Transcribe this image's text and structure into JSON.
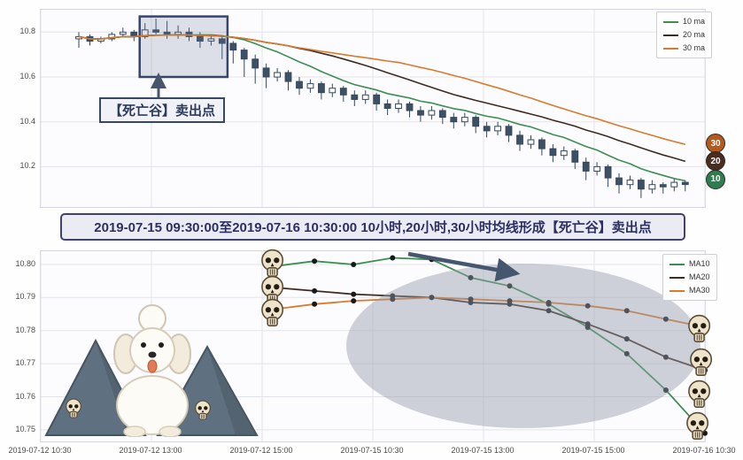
{
  "banner": {
    "text": "2019-07-15 09:30:00至2019-07-16 10:30:00 10小时,20小时,30小时均线形成【死亡谷】卖出点"
  },
  "top_chart": {
    "legend": [
      "10 ma",
      "20 ma",
      "30 ma"
    ],
    "ytick_labels": [
      "10.8",
      "10.6",
      "10.4",
      "10.2"
    ]
  },
  "bottom_chart": {
    "legend": [
      "MA10",
      "MA20",
      "MA30"
    ],
    "ytick_labels": [
      "10.80",
      "10.79",
      "10.78",
      "10.77",
      "10.76",
      "10.75"
    ]
  },
  "x_tick_labels": [
    "2019-07-12 10:30",
    "2019-07-12 13:00",
    "2019-07-12 15:00",
    "2019-07-15 10:30",
    "2019-07-15 13:00",
    "2019-07-15 15:00",
    "2019-07-16 10:30"
  ],
  "colors": {
    "ma10": "#3c8e53",
    "ma20": "#3f2a20",
    "ma30": "#d97b2e",
    "candle": "#35485e",
    "candle_down_fill": "#3d5064",
    "grid": "#e3e3eb",
    "arrow": "#46566e",
    "ellipse": "rgba(148,156,170,0.45)",
    "highlight_fill": "rgba(110,125,155,0.22)",
    "highlight_stroke": "#36456b",
    "badge_30": "#b45a1d",
    "badge_20": "#4a2d20",
    "badge_10": "#2f7d4f"
  },
  "chart_data": [
    {
      "type": "candlestick",
      "title": "",
      "xlabel": "",
      "ylabel": "",
      "grid": true,
      "legend_position": "top-right",
      "ylim": [
        10.02,
        10.9
      ],
      "yticks": [
        10.8,
        10.6,
        10.4,
        10.2
      ],
      "x_tick_labels": [
        "2019-07-12 10:30",
        "2019-07-12 13:00",
        "2019-07-12 15:00",
        "2019-07-15 10:30",
        "2019-07-15 13:00",
        "2019-07-15 15:00",
        "2019-07-16 10:30"
      ],
      "ma_series": [
        {
          "name": "10 ma",
          "window": 10
        },
        {
          "name": "20 ma",
          "window": 20
        },
        {
          "name": "30 ma",
          "window": 30
        }
      ],
      "candles_ohlc": [
        [
          10.77,
          10.8,
          10.73,
          10.78
        ],
        [
          10.78,
          10.79,
          10.74,
          10.76
        ],
        [
          10.76,
          10.78,
          10.75,
          10.77
        ],
        [
          10.77,
          10.8,
          10.76,
          10.79
        ],
        [
          10.79,
          10.82,
          10.78,
          10.8
        ],
        [
          10.8,
          10.81,
          10.76,
          10.78
        ],
        [
          10.78,
          10.84,
          10.77,
          10.81
        ],
        [
          10.81,
          10.86,
          10.79,
          10.8
        ],
        [
          10.8,
          10.85,
          10.77,
          10.79
        ],
        [
          10.79,
          10.83,
          10.77,
          10.8
        ],
        [
          10.8,
          10.82,
          10.76,
          10.78
        ],
        [
          10.78,
          10.8,
          10.73,
          10.76
        ],
        [
          10.76,
          10.79,
          10.74,
          10.77
        ],
        [
          10.77,
          10.78,
          10.68,
          10.75
        ],
        [
          10.75,
          10.76,
          10.66,
          10.72
        ],
        [
          10.72,
          10.73,
          10.6,
          10.68
        ],
        [
          10.68,
          10.7,
          10.57,
          10.64
        ],
        [
          10.64,
          10.66,
          10.55,
          10.6
        ],
        [
          10.6,
          10.64,
          10.58,
          10.62
        ],
        [
          10.62,
          10.63,
          10.54,
          10.58
        ],
        [
          10.58,
          10.6,
          10.52,
          10.55
        ],
        [
          10.55,
          10.59,
          10.53,
          10.57
        ],
        [
          10.57,
          10.58,
          10.5,
          10.53
        ],
        [
          10.53,
          10.57,
          10.51,
          10.55
        ],
        [
          10.55,
          10.56,
          10.49,
          10.52
        ],
        [
          10.52,
          10.54,
          10.47,
          10.5
        ],
        [
          10.5,
          10.54,
          10.48,
          10.52
        ],
        [
          10.52,
          10.53,
          10.45,
          10.48
        ],
        [
          10.48,
          10.5,
          10.43,
          10.46
        ],
        [
          10.46,
          10.5,
          10.44,
          10.48
        ],
        [
          10.48,
          10.49,
          10.42,
          10.45
        ],
        [
          10.45,
          10.47,
          10.4,
          10.43
        ],
        [
          10.43,
          10.47,
          10.41,
          10.45
        ],
        [
          10.45,
          10.46,
          10.39,
          10.42
        ],
        [
          10.42,
          10.44,
          10.37,
          10.4
        ],
        [
          10.4,
          10.44,
          10.38,
          10.42
        ],
        [
          10.42,
          10.43,
          10.35,
          10.38
        ],
        [
          10.38,
          10.4,
          10.33,
          10.36
        ],
        [
          10.36,
          10.4,
          10.34,
          10.38
        ],
        [
          10.38,
          10.39,
          10.31,
          10.34
        ],
        [
          10.34,
          10.36,
          10.27,
          10.3
        ],
        [
          10.3,
          10.34,
          10.28,
          10.32
        ],
        [
          10.32,
          10.33,
          10.25,
          10.28
        ],
        [
          10.28,
          10.3,
          10.22,
          10.25
        ],
        [
          10.25,
          10.29,
          10.23,
          10.27
        ],
        [
          10.27,
          10.28,
          10.19,
          10.22
        ],
        [
          10.22,
          10.24,
          10.14,
          10.18
        ],
        [
          10.18,
          10.22,
          10.16,
          10.2
        ],
        [
          10.2,
          10.21,
          10.11,
          10.15
        ],
        [
          10.15,
          10.17,
          10.08,
          10.12
        ],
        [
          10.12,
          10.16,
          10.1,
          10.14
        ],
        [
          10.14,
          10.15,
          10.06,
          10.1
        ],
        [
          10.1,
          10.14,
          10.08,
          10.12
        ],
        [
          10.12,
          10.13,
          10.08,
          10.11
        ],
        [
          10.11,
          10.15,
          10.09,
          10.13
        ],
        [
          10.13,
          10.14,
          10.09,
          10.12
        ]
      ],
      "annotations": {
        "label": "【死亡谷】卖出点",
        "highlight_box": {
          "x_candle_start": 6,
          "x_candle_end": 13,
          "price_top": 10.87,
          "price_bottom": 10.6
        },
        "end_badges": [
          {
            "label": "30",
            "price": 10.3,
            "color": "#b45a1d"
          },
          {
            "label": "20",
            "price": 10.22,
            "color": "#4a2d20"
          },
          {
            "label": "10",
            "price": 10.14,
            "color": "#2f7d4f"
          }
        ]
      }
    },
    {
      "type": "line",
      "title": "",
      "xlabel": "",
      "ylabel": "",
      "grid": true,
      "legend_position": "top-right",
      "ylim": [
        10.7465,
        10.804
      ],
      "yticks": [
        10.8,
        10.79,
        10.78,
        10.77,
        10.76,
        10.75
      ],
      "x_tick_labels": [
        "2019-07-12 10:30",
        "2019-07-12 13:00",
        "2019-07-12 15:00",
        "2019-07-15 10:30",
        "2019-07-15 13:00",
        "2019-07-15 15:00",
        "2019-07-16 10:30"
      ],
      "series": [
        {
          "name": "MA10",
          "values": [
            10.7995,
            10.801,
            10.8,
            10.802,
            10.8015,
            10.796,
            10.7935,
            10.788,
            10.781,
            10.773,
            10.762,
            10.749
          ]
        },
        {
          "name": "MA20",
          "values": [
            10.793,
            10.792,
            10.791,
            10.7905,
            10.79,
            10.7885,
            10.788,
            10.786,
            10.782,
            10.7775,
            10.772,
            10.768
          ]
        },
        {
          "name": "MA30",
          "values": [
            10.7865,
            10.788,
            10.789,
            10.7895,
            10.79,
            10.7895,
            10.789,
            10.7885,
            10.7875,
            10.786,
            10.7835,
            10.781
          ]
        }
      ]
    }
  ]
}
